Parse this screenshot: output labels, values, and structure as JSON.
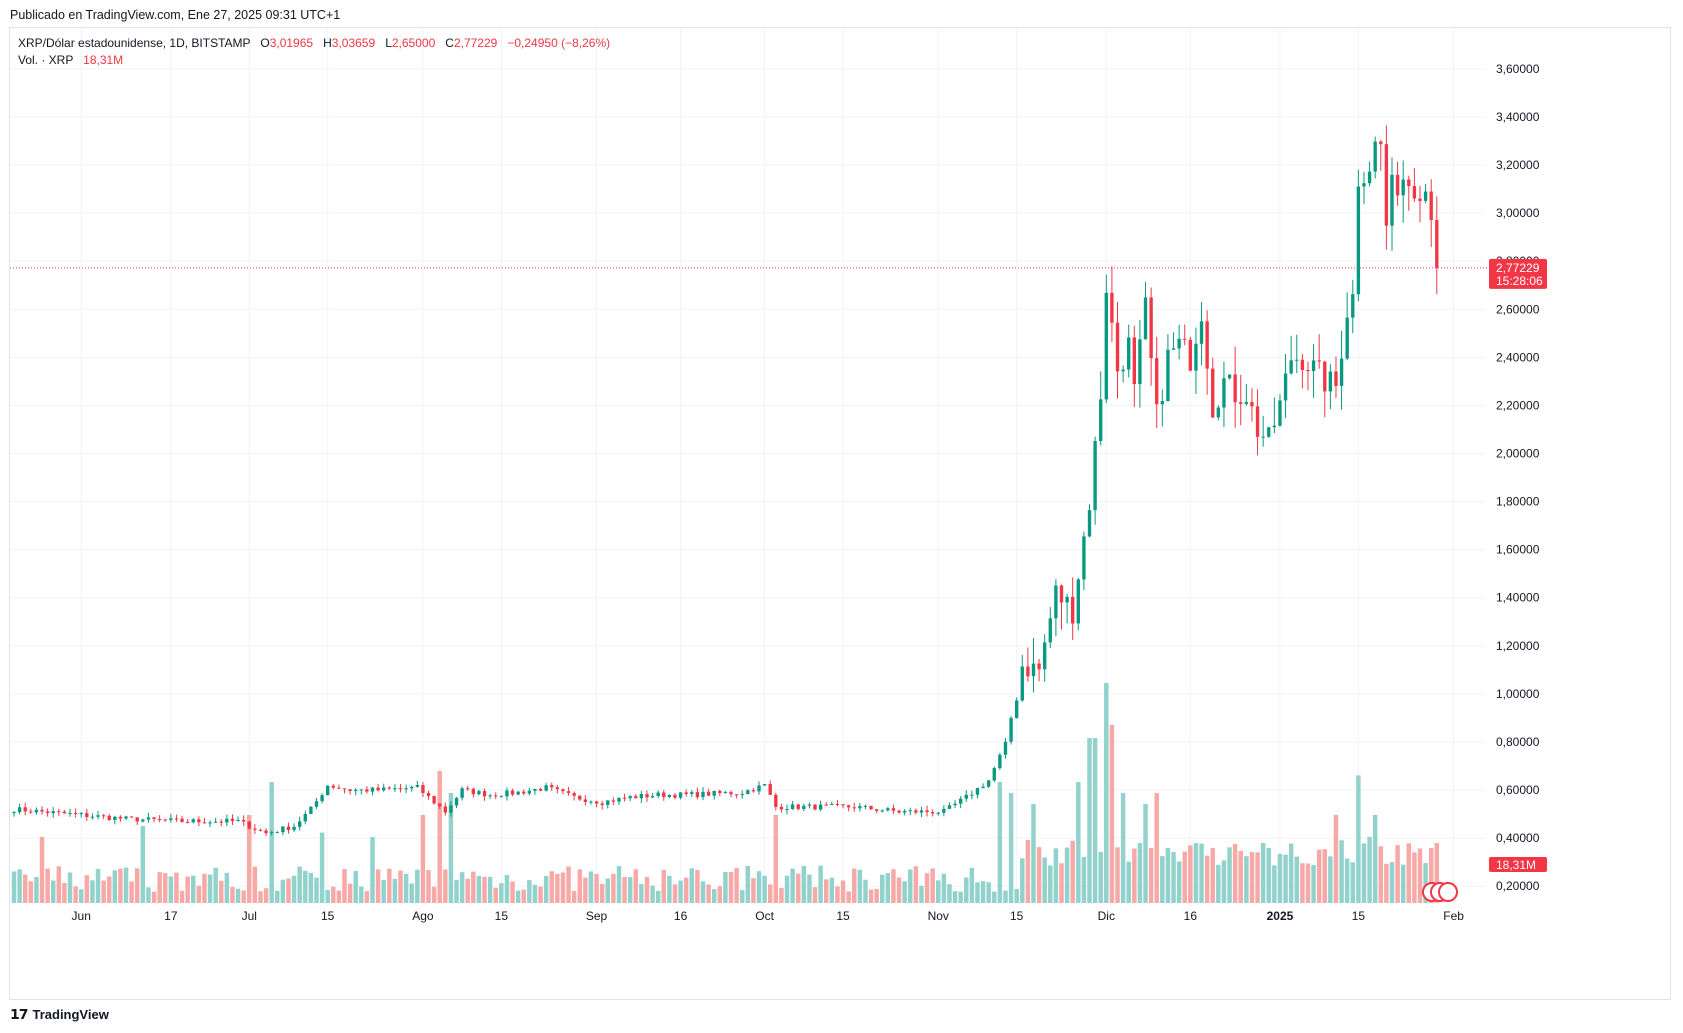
{
  "header": {
    "published": "Publicado en TradingView.com, Ene 27, 2025 09:31 UTC+1"
  },
  "legend": {
    "symbol": "XRP/Dólar estadounidense, 1D, BITSTAMP",
    "o_label": "O",
    "o_value": "3,01965",
    "h_label": "H",
    "h_value": "3,03659",
    "l_label": "L",
    "l_value": "2,65000",
    "c_label": "C",
    "c_value": "2,77229",
    "change": "−0,24950 (−8,26%)",
    "vol_label": "Vol. · XRP",
    "vol_value": "18,31M"
  },
  "footer": {
    "brand": "TradingView",
    "logo": "tv-logo-icon"
  },
  "colors": {
    "up": "#089981",
    "down": "#f23645",
    "up_vol": "#92d2cc",
    "down_vol": "#f7a9a7",
    "grid": "#f0f3fa"
  },
  "chart_data": {
    "type": "candlestick",
    "symbol": "XRP/USD",
    "interval": "1D",
    "ylim": [
      0.1,
      3.7
    ],
    "y_ticks": [
      "3,60000",
      "3,40000",
      "3,20000",
      "3,00000",
      "2,80000",
      "2,60000",
      "2,40000",
      "2,20000",
      "2,00000",
      "1,80000",
      "1,60000",
      "1,40000",
      "1,20000",
      "1,00000",
      "0,80000",
      "0,60000",
      "0,40000",
      "0,20000"
    ],
    "y_tick_values": [
      3.6,
      3.4,
      3.2,
      3.0,
      2.8,
      2.6,
      2.4,
      2.2,
      2.0,
      1.8,
      1.6,
      1.4,
      1.2,
      1.0,
      0.8,
      0.6,
      0.4,
      0.2
    ],
    "x_ticks": [
      {
        "label": "Jun",
        "day": 12,
        "bold": false
      },
      {
        "label": "17",
        "day": 28,
        "bold": false
      },
      {
        "label": "Jul",
        "day": 42,
        "bold": false
      },
      {
        "label": "15",
        "day": 56,
        "bold": false
      },
      {
        "label": "Ago",
        "day": 73,
        "bold": false
      },
      {
        "label": "15",
        "day": 87,
        "bold": false
      },
      {
        "label": "Sep",
        "day": 104,
        "bold": false
      },
      {
        "label": "16",
        "day": 119,
        "bold": false
      },
      {
        "label": "Oct",
        "day": 134,
        "bold": false
      },
      {
        "label": "15",
        "day": 148,
        "bold": false
      },
      {
        "label": "Nov",
        "day": 165,
        "bold": false
      },
      {
        "label": "15",
        "day": 179,
        "bold": false
      },
      {
        "label": "Dic",
        "day": 195,
        "bold": false
      },
      {
        "label": "16",
        "day": 210,
        "bold": false
      },
      {
        "label": "2025",
        "day": 226,
        "bold": true
      },
      {
        "label": "15",
        "day": 240,
        "bold": false
      },
      {
        "label": "Feb",
        "day": 257,
        "bold": false
      }
    ],
    "last_price": 2.77229,
    "last_price_label": "2,77229",
    "countdown": "15:28:06",
    "last_volume_label": "18,31M",
    "close_anchors": [
      [
        0,
        0.52
      ],
      [
        10,
        0.5
      ],
      [
        20,
        0.48
      ],
      [
        30,
        0.47
      ],
      [
        40,
        0.47
      ],
      [
        45,
        0.42
      ],
      [
        50,
        0.45
      ],
      [
        53,
        0.52
      ],
      [
        56,
        0.62
      ],
      [
        60,
        0.6
      ],
      [
        65,
        0.6
      ],
      [
        72,
        0.61
      ],
      [
        77,
        0.51
      ],
      [
        80,
        0.6
      ],
      [
        85,
        0.58
      ],
      [
        90,
        0.59
      ],
      [
        95,
        0.61
      ],
      [
        100,
        0.57
      ],
      [
        105,
        0.55
      ],
      [
        110,
        0.57
      ],
      [
        115,
        0.58
      ],
      [
        120,
        0.58
      ],
      [
        130,
        0.59
      ],
      [
        134,
        0.62
      ],
      [
        136,
        0.53
      ],
      [
        145,
        0.53
      ],
      [
        150,
        0.53
      ],
      [
        158,
        0.51
      ],
      [
        166,
        0.51
      ],
      [
        170,
        0.57
      ],
      [
        174,
        0.64
      ],
      [
        177,
        0.79
      ],
      [
        180,
        1.12
      ],
      [
        183,
        1.1
      ],
      [
        186,
        1.42
      ],
      [
        189,
        1.35
      ],
      [
        192,
        1.8
      ],
      [
        194,
        2.25
      ],
      [
        195,
        2.7
      ],
      [
        197,
        2.35
      ],
      [
        199,
        2.45
      ],
      [
        200,
        2.25
      ],
      [
        202,
        2.6
      ],
      [
        204,
        2.15
      ],
      [
        206,
        2.4
      ],
      [
        208,
        2.45
      ],
      [
        210,
        2.4
      ],
      [
        212,
        2.6
      ],
      [
        214,
        2.2
      ],
      [
        216,
        2.3
      ],
      [
        218,
        2.25
      ],
      [
        220,
        2.25
      ],
      [
        222,
        2.1
      ],
      [
        224,
        2.05
      ],
      [
        226,
        2.2
      ],
      [
        228,
        2.4
      ],
      [
        230,
        2.4
      ],
      [
        232,
        2.35
      ],
      [
        234,
        2.3
      ],
      [
        236,
        2.28
      ],
      [
        238,
        2.6
      ],
      [
        239,
        2.65
      ],
      [
        240,
        3.15
      ],
      [
        242,
        3.2
      ],
      [
        243,
        3.28
      ],
      [
        244,
        3.28
      ],
      [
        245,
        2.95
      ],
      [
        246,
        3.1
      ],
      [
        248,
        3.15
      ],
      [
        250,
        3.12
      ],
      [
        252,
        3.1
      ],
      [
        253,
        3.02
      ],
      [
        254,
        2.77
      ]
    ],
    "volume_spikes": [
      [
        5,
        0.3
      ],
      [
        23,
        0.35
      ],
      [
        42,
        0.4
      ],
      [
        46,
        0.55
      ],
      [
        55,
        0.32
      ],
      [
        64,
        0.3
      ],
      [
        73,
        0.4
      ],
      [
        76,
        0.6
      ],
      [
        78,
        0.5
      ],
      [
        136,
        0.4
      ],
      [
        176,
        0.55
      ],
      [
        178,
        0.5
      ],
      [
        182,
        0.45
      ],
      [
        190,
        0.55
      ],
      [
        192,
        0.75
      ],
      [
        193,
        0.75
      ],
      [
        195,
        1.0
      ],
      [
        196,
        0.81
      ],
      [
        198,
        0.5
      ],
      [
        202,
        0.45
      ],
      [
        204,
        0.5
      ],
      [
        206,
        0.25
      ],
      [
        214,
        0.25
      ],
      [
        236,
        0.4
      ],
      [
        240,
        0.58
      ],
      [
        242,
        0.3
      ],
      [
        243,
        0.4
      ]
    ],
    "volume_ylim_label": "vol"
  }
}
